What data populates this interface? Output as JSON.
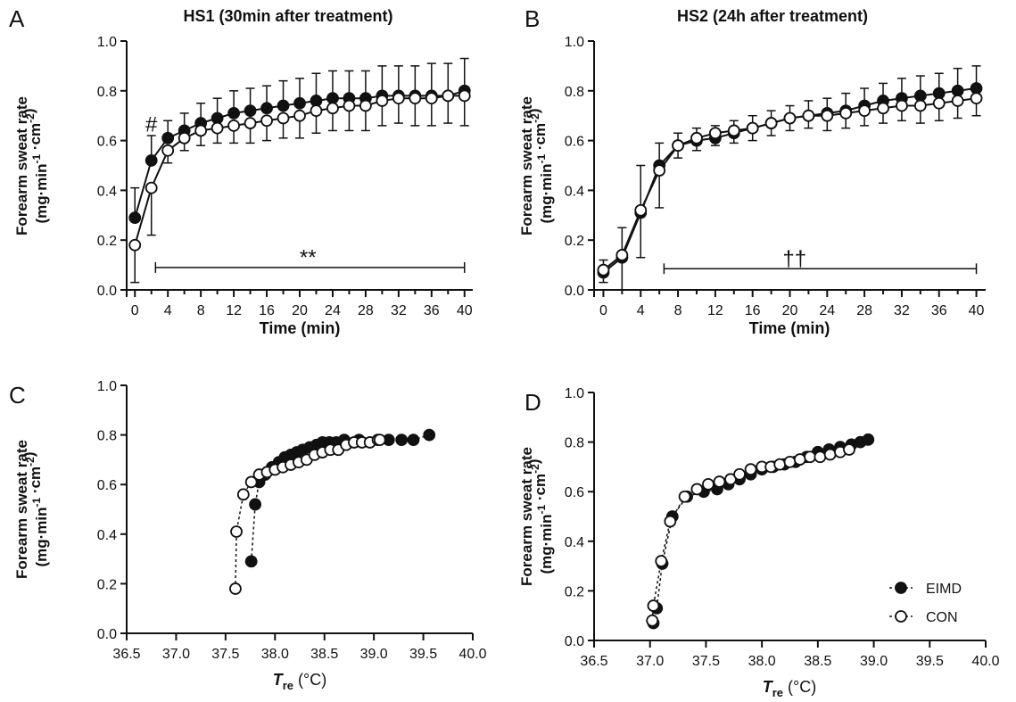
{
  "legend": [
    {
      "label": "EIMD",
      "marker": "filled"
    },
    {
      "label": "CON",
      "marker": "open"
    }
  ],
  "chart_data": [
    {
      "letter": "A",
      "type": "line",
      "title": "HS1 (30min after treatment)",
      "xlabel": "Time (min)",
      "ylabel": "Forearm sweat rate (mg·min⁻¹·cm⁻²)",
      "xlim": [
        -1,
        41
      ],
      "ylim": [
        0,
        1.0
      ],
      "xticks": [
        0,
        4,
        8,
        12,
        16,
        20,
        24,
        28,
        32,
        36,
        40
      ],
      "yticks": [
        0.0,
        0.2,
        0.4,
        0.6,
        0.8,
        1.0
      ],
      "x": [
        0,
        2,
        4,
        6,
        8,
        10,
        12,
        14,
        16,
        18,
        20,
        22,
        24,
        26,
        28,
        30,
        32,
        34,
        36,
        38,
        40
      ],
      "series": [
        {
          "name": "EIMD",
          "marker": "filled",
          "values": [
            0.29,
            0.52,
            0.61,
            0.64,
            0.67,
            0.69,
            0.71,
            0.72,
            0.73,
            0.74,
            0.75,
            0.76,
            0.77,
            0.77,
            0.77,
            0.78,
            0.78,
            0.78,
            0.78,
            0.78,
            0.8
          ],
          "error": [
            0.12,
            0.1,
            0.07,
            0.07,
            0.08,
            0.08,
            0.09,
            0.09,
            0.09,
            0.1,
            0.1,
            0.11,
            0.11,
            0.11,
            0.11,
            0.12,
            0.12,
            0.12,
            0.13,
            0.13,
            0.13
          ]
        },
        {
          "name": "CON",
          "marker": "open",
          "values": [
            0.18,
            0.41,
            0.56,
            0.61,
            0.64,
            0.65,
            0.66,
            0.67,
            0.68,
            0.69,
            0.7,
            0.72,
            0.73,
            0.74,
            0.74,
            0.76,
            0.77,
            0.77,
            0.77,
            0.78,
            0.78
          ],
          "error": [
            0.15,
            0.19,
            0.05,
            0.05,
            0.06,
            0.06,
            0.07,
            0.08,
            0.08,
            0.08,
            0.09,
            0.09,
            0.09,
            0.1,
            0.1,
            0.1,
            0.1,
            0.11,
            0.11,
            0.11,
            0.12
          ]
        }
      ],
      "annotations": [
        {
          "text": "#",
          "x": 2,
          "y": 0.665
        },
        {
          "text": "**",
          "x": 21,
          "y": 0.13,
          "bracket": [
            2.5,
            40,
            0.09
          ]
        }
      ]
    },
    {
      "letter": "B",
      "type": "line",
      "title": "HS2 (24h after treatment)",
      "xlabel": "Time (min)",
      "ylabel": "Forearm sweat rate (mg·min⁻¹·cm⁻²)",
      "xlim": [
        -1,
        41
      ],
      "ylim": [
        0,
        1.0
      ],
      "xticks": [
        0,
        4,
        8,
        12,
        16,
        20,
        24,
        28,
        32,
        36,
        40
      ],
      "yticks": [
        0.0,
        0.2,
        0.4,
        0.6,
        0.8,
        1.0
      ],
      "x": [
        0,
        2,
        4,
        6,
        8,
        10,
        12,
        14,
        16,
        18,
        20,
        22,
        24,
        26,
        28,
        30,
        32,
        34,
        36,
        38,
        40
      ],
      "series": [
        {
          "name": "EIMD",
          "marker": "filled",
          "values": [
            0.07,
            0.13,
            0.31,
            0.5,
            0.58,
            0.6,
            0.61,
            0.63,
            0.65,
            0.67,
            0.69,
            0.7,
            0.71,
            0.72,
            0.74,
            0.76,
            0.77,
            0.78,
            0.79,
            0.8,
            0.81
          ],
          "error": [
            0.05,
            0.12,
            0.19,
            0.09,
            0.05,
            0.05,
            0.05,
            0.05,
            0.05,
            0.05,
            0.05,
            0.06,
            0.06,
            0.07,
            0.07,
            0.07,
            0.08,
            0.08,
            0.08,
            0.09,
            0.09
          ]
        },
        {
          "name": "CON",
          "marker": "open",
          "values": [
            0.08,
            0.14,
            0.32,
            0.48,
            0.58,
            0.61,
            0.63,
            0.64,
            0.65,
            0.67,
            0.69,
            0.7,
            0.7,
            0.71,
            0.72,
            0.73,
            0.74,
            0.74,
            0.75,
            0.76,
            0.77
          ],
          "error": [
            0.05,
            0.14,
            0.19,
            0.15,
            0.05,
            0.05,
            0.05,
            0.05,
            0.05,
            0.05,
            0.05,
            0.05,
            0.06,
            0.06,
            0.06,
            0.06,
            0.06,
            0.07,
            0.07,
            0.07,
            0.07
          ]
        }
      ],
      "annotations": [
        {
          "text": "††",
          "x": 20.5,
          "y": 0.125,
          "bracket": [
            6.5,
            40,
            0.085
          ]
        }
      ]
    },
    {
      "letter": "C",
      "type": "scatter",
      "xlabel": "T_re (°C)",
      "xlabel_main": "T",
      "xlabel_sub": "re",
      "xlabel_unit": " (°C)",
      "ylabel": "Forearm sweat rate (mg·min⁻¹·cm⁻²)",
      "xlim": [
        36.5,
        40.0
      ],
      "ylim": [
        0,
        1.0
      ],
      "xticks": [
        36.5,
        37.0,
        37.5,
        38.0,
        38.5,
        39.0,
        39.5,
        40.0
      ],
      "yticks": [
        0.0,
        0.2,
        0.4,
        0.6,
        0.8,
        1.0
      ],
      "series": [
        {
          "name": "EIMD",
          "marker": "filled",
          "x": [
            37.76,
            37.8,
            37.84,
            37.9,
            37.97,
            38.04,
            38.1,
            38.16,
            38.22,
            38.28,
            38.35,
            38.42,
            38.48,
            38.55,
            38.62,
            38.7,
            38.85,
            39.15,
            39.28,
            39.4,
            39.56
          ],
          "y": [
            0.29,
            0.52,
            0.61,
            0.64,
            0.67,
            0.69,
            0.71,
            0.72,
            0.73,
            0.74,
            0.75,
            0.76,
            0.77,
            0.77,
            0.77,
            0.78,
            0.78,
            0.78,
            0.78,
            0.78,
            0.8
          ]
        },
        {
          "name": "CON",
          "marker": "open",
          "x": [
            37.6,
            37.61,
            37.68,
            37.76,
            37.84,
            37.92,
            38.0,
            38.08,
            38.16,
            38.24,
            38.32,
            38.4,
            38.48,
            38.56,
            38.64,
            38.72,
            38.8,
            38.88,
            38.96,
            39.04,
            39.06
          ],
          "y": [
            0.18,
            0.41,
            0.56,
            0.61,
            0.64,
            0.65,
            0.66,
            0.67,
            0.68,
            0.69,
            0.7,
            0.72,
            0.73,
            0.74,
            0.74,
            0.76,
            0.77,
            0.77,
            0.77,
            0.78,
            0.78
          ]
        }
      ]
    },
    {
      "letter": "D",
      "type": "scatter",
      "xlabel": "T_re (°C)",
      "xlabel_main": "T",
      "xlabel_sub": "re",
      "xlabel_unit": " (°C)",
      "ylabel": "Forearm sweat rate (mg·min⁻¹·cm⁻²)",
      "xlim": [
        36.5,
        40.0
      ],
      "ylim": [
        0,
        1.0
      ],
      "xticks": [
        36.5,
        37.0,
        37.5,
        38.0,
        38.5,
        39.0,
        39.5,
        40.0
      ],
      "yticks": [
        0.0,
        0.2,
        0.4,
        0.6,
        0.8,
        1.0
      ],
      "series": [
        {
          "name": "EIMD",
          "marker": "filled",
          "x": [
            37.03,
            37.06,
            37.11,
            37.2,
            37.33,
            37.48,
            37.6,
            37.7,
            37.8,
            37.9,
            38.0,
            38.1,
            38.2,
            38.3,
            38.4,
            38.5,
            38.6,
            38.7,
            38.8,
            38.88,
            38.95
          ],
          "y": [
            0.07,
            0.13,
            0.31,
            0.5,
            0.58,
            0.6,
            0.61,
            0.63,
            0.65,
            0.67,
            0.69,
            0.7,
            0.71,
            0.72,
            0.74,
            0.76,
            0.77,
            0.78,
            0.79,
            0.8,
            0.81
          ]
        },
        {
          "name": "CON",
          "marker": "open",
          "x": [
            37.02,
            37.03,
            37.1,
            37.18,
            37.31,
            37.42,
            37.52,
            37.62,
            37.72,
            37.8,
            37.9,
            38.0,
            38.08,
            38.16,
            38.25,
            38.34,
            38.43,
            38.52,
            38.61,
            38.7,
            38.78
          ],
          "y": [
            0.08,
            0.14,
            0.32,
            0.48,
            0.58,
            0.61,
            0.63,
            0.64,
            0.65,
            0.67,
            0.69,
            0.7,
            0.7,
            0.71,
            0.72,
            0.73,
            0.74,
            0.74,
            0.75,
            0.76,
            0.77
          ]
        }
      ]
    }
  ]
}
